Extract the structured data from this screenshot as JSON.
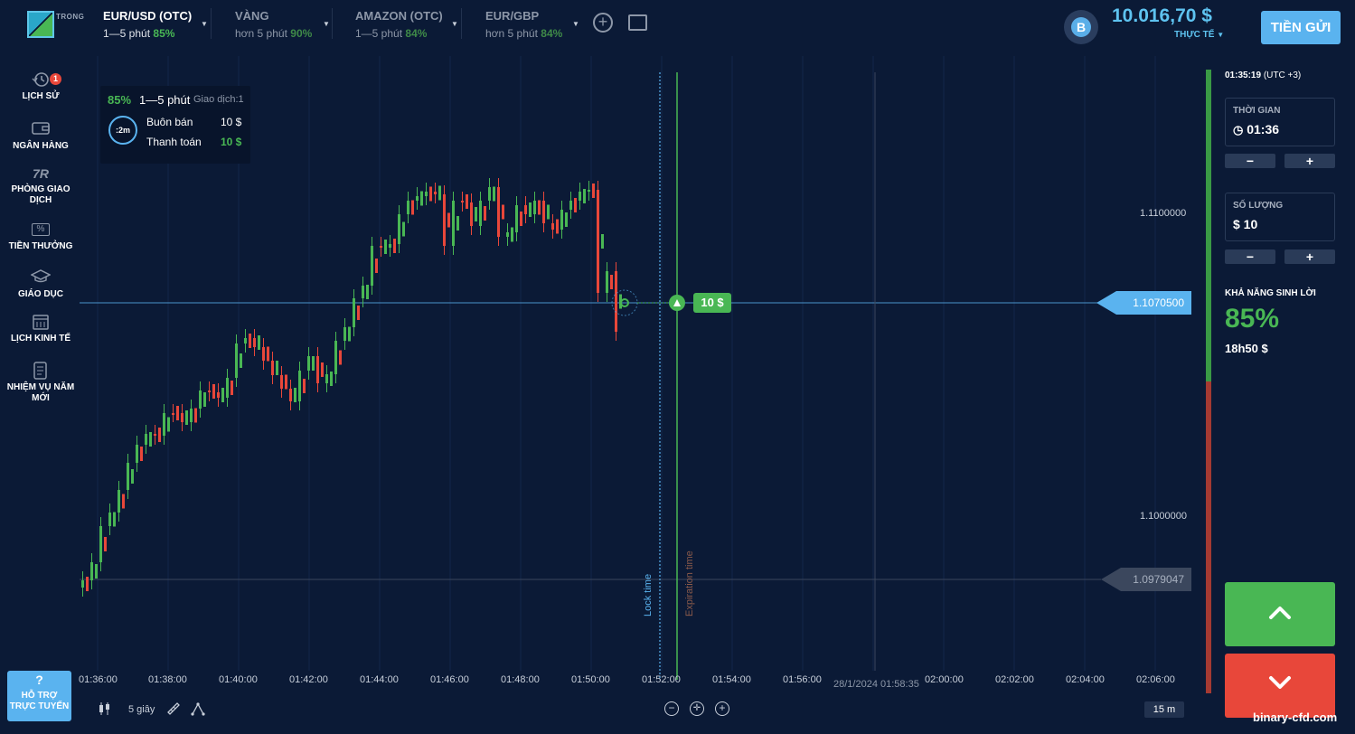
{
  "brand": {
    "logo_text": "TRONG"
  },
  "assets": [
    {
      "name": "EUR/USD (OTC)",
      "duration": "1—5 phút",
      "payout": "85%",
      "active": true
    },
    {
      "name": "VÀNG",
      "duration": "hơn 5 phút",
      "payout": "90%",
      "active": false
    },
    {
      "name": "AMAZON (OTC)",
      "duration": "1—5 phút",
      "payout": "84%",
      "active": false
    },
    {
      "name": "EUR/GBP",
      "duration": "hơn 5 phút",
      "payout": "84%",
      "active": false
    }
  ],
  "account": {
    "avatar_letter": "B",
    "balance": "10.016,70 $",
    "type": "THỰC TẾ",
    "deposit_label": "TIỀN GỬI"
  },
  "sidebar": {
    "items": [
      {
        "label": "LỊCH SỬ",
        "badge": "1"
      },
      {
        "label": "NGÂN HÀNG"
      },
      {
        "label": "PHÒNG GIAO DỊCH",
        "icon_text": "7R"
      },
      {
        "label": "TIỀN THƯỞNG",
        "icon_text": "%"
      },
      {
        "label": "GIÁO DỤC"
      },
      {
        "label": "LỊCH KINH TẾ"
      },
      {
        "label": "NHIỆM VỤ NĂM MỚI"
      }
    ],
    "support": {
      "icon": "?",
      "label": "HỖ TRỢ TRỰC TUYẾN"
    }
  },
  "trade_box": {
    "payout": "85%",
    "duration": "1—5 phút",
    "count": "Giao dịch:1",
    "timer": ":2m",
    "buy_label": "Buôn bán",
    "buy_value": "10 $",
    "pay_label": "Thanh toán",
    "pay_value": "10 $"
  },
  "chart": {
    "current_price": "1.1070500",
    "low_price": "1.0979047",
    "axis_prices": [
      "1.1100000",
      "1.1000000"
    ],
    "bet_amount": "10 $",
    "lock_label": "Lock time",
    "expiration_label": "Expiration time",
    "cursor_date": "28/1/2024  01:58:35",
    "time_labels": [
      "01:36:00",
      "01:38:00",
      "01:40:00",
      "01:42:00",
      "01:44:00",
      "01:46:00",
      "01:48:00",
      "01:50:00",
      "01:52:00",
      "01:54:00",
      "01:56:00",
      "02:00:00",
      "02:02:00",
      "02:04:00",
      "02:06:00"
    ],
    "candle_interval": "5 giây",
    "timeframe": "15 m",
    "colors": {
      "up": "#49b754",
      "down": "#e8473a",
      "accent": "#5ab3ef"
    }
  },
  "panel": {
    "clock": "01:35:19",
    "tz": "(UTC +3)",
    "time_caption": "THỜI GIAN",
    "time_value": "01:36",
    "amount_caption": "SỐ LƯỢNG",
    "amount_value": "$ 10",
    "minus": "−",
    "plus": "+",
    "payout_caption": "KHẢ NĂNG SINH LỜI",
    "payout_pct": "85%",
    "payout_amount": "18h50 $"
  },
  "watermark": "binary-cfd.com"
}
